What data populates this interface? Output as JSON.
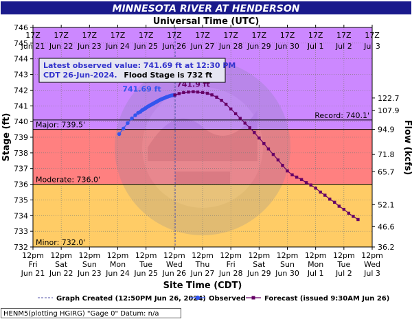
{
  "chart_data": {
    "type": "line",
    "title": "MINNESOTA RIVER AT HENDERSON",
    "top_axis_title": "Universal Time (UTC)",
    "xlabel": "Site Time (CDT)",
    "ylabel": "Stage (ft)",
    "y2label": "Flow (kcfs)",
    "x_range": [
      0,
      12
    ],
    "ylim": [
      732,
      746
    ],
    "y_ticks": [
      732,
      733,
      734,
      735,
      736,
      737,
      738,
      739,
      740,
      741,
      742,
      743,
      744,
      745,
      746
    ],
    "top_ticks": [
      {
        "x": 0,
        "l1": "17Z",
        "l2": "Jun 21"
      },
      {
        "x": 1,
        "l1": "17Z",
        "l2": "Jun 22"
      },
      {
        "x": 2,
        "l1": "17Z",
        "l2": "Jun 23"
      },
      {
        "x": 3,
        "l1": "17Z",
        "l2": "Jun 24"
      },
      {
        "x": 4,
        "l1": "17Z",
        "l2": "Jun 25"
      },
      {
        "x": 5,
        "l1": "17Z",
        "l2": "Jun 26"
      },
      {
        "x": 6,
        "l1": "17Z",
        "l2": "Jun 27"
      },
      {
        "x": 7,
        "l1": "17Z",
        "l2": "Jun 28"
      },
      {
        "x": 8,
        "l1": "17Z",
        "l2": "Jun 29"
      },
      {
        "x": 9,
        "l1": "17Z",
        "l2": "Jun 30"
      },
      {
        "x": 10,
        "l1": "17Z",
        "l2": "Jul 1"
      },
      {
        "x": 11,
        "l1": "17Z",
        "l2": "Jul 2"
      },
      {
        "x": 12,
        "l1": "17Z",
        "l2": "Jul 3"
      }
    ],
    "bottom_ticks": [
      {
        "x": 0,
        "l1": "12pm",
        "l2": "Fri",
        "l3": "Jun 21"
      },
      {
        "x": 1,
        "l1": "12pm",
        "l2": "Sat",
        "l3": "Jun 22"
      },
      {
        "x": 2,
        "l1": "12pm",
        "l2": "Sun",
        "l3": "Jun 23"
      },
      {
        "x": 3,
        "l1": "12pm",
        "l2": "Mon",
        "l3": "Jun 24"
      },
      {
        "x": 4,
        "l1": "12pm",
        "l2": "Tue",
        "l3": "Jun 25"
      },
      {
        "x": 5,
        "l1": "12pm",
        "l2": "Wed",
        "l3": "Jun 26"
      },
      {
        "x": 6,
        "l1": "12pm",
        "l2": "Thu",
        "l3": "Jun 27"
      },
      {
        "x": 7,
        "l1": "12pm",
        "l2": "Fri",
        "l3": "Jun 28"
      },
      {
        "x": 8,
        "l1": "12pm",
        "l2": "Sat",
        "l3": "Jun 29"
      },
      {
        "x": 9,
        "l1": "12pm",
        "l2": "Sun",
        "l3": "Jun 30"
      },
      {
        "x": 10,
        "l1": "12pm",
        "l2": "Mon",
        "l3": "Jul 1"
      },
      {
        "x": 11,
        "l1": "12pm",
        "l2": "Tue",
        "l3": "Jul 2"
      },
      {
        "x": 12,
        "l1": "12pm",
        "l2": "Wed",
        "l3": "Jul 3"
      }
    ],
    "flow_ticks": [
      {
        "stage": 732.0,
        "label": "36.2"
      },
      {
        "stage": 733.3,
        "label": "46.6"
      },
      {
        "stage": 734.7,
        "label": "52.1"
      },
      {
        "stage": 736.8,
        "label": "65.7"
      },
      {
        "stage": 737.9,
        "label": "71.8"
      },
      {
        "stage": 739.5,
        "label": "94.9"
      },
      {
        "stage": 740.7,
        "label": "107.9"
      },
      {
        "stage": 741.5,
        "label": "122.7"
      }
    ],
    "bands": [
      {
        "name": "Minor",
        "from": 732.0,
        "to": 736.0,
        "color": "#ffcc66",
        "label": "Minor: 732.0'"
      },
      {
        "name": "Moderate",
        "from": 736.0,
        "to": 739.5,
        "color": "#ff8080",
        "label": "Moderate: 736.0'"
      },
      {
        "name": "Major",
        "from": 739.5,
        "to": 746.0,
        "color": "#cc88ff",
        "label": "Major: 739.5'"
      }
    ],
    "record": {
      "stage": 740.1,
      "label": "Record: 740.1'"
    },
    "graph_created_x": 5.03,
    "series": [
      {
        "name": "Observed",
        "color": "#3355ee",
        "points": [
          [
            3.05,
            739.2
          ],
          [
            3.2,
            739.55
          ],
          [
            3.35,
            739.9
          ],
          [
            3.5,
            740.2
          ],
          [
            3.62,
            740.4
          ],
          [
            3.72,
            740.55
          ],
          [
            3.8,
            740.62
          ],
          [
            3.86,
            740.72
          ],
          [
            3.9,
            740.76
          ],
          [
            3.94,
            740.8
          ],
          [
            3.98,
            740.85
          ],
          [
            4.02,
            740.9
          ],
          [
            4.06,
            740.95
          ],
          [
            4.1,
            740.99
          ],
          [
            4.14,
            741.03
          ],
          [
            4.18,
            741.07
          ],
          [
            4.22,
            741.11
          ],
          [
            4.26,
            741.15
          ],
          [
            4.3,
            741.19
          ],
          [
            4.34,
            741.23
          ],
          [
            4.38,
            741.27
          ],
          [
            4.42,
            741.31
          ],
          [
            4.46,
            741.35
          ],
          [
            4.5,
            741.39
          ],
          [
            4.54,
            741.42
          ],
          [
            4.58,
            741.45
          ],
          [
            4.62,
            741.48
          ],
          [
            4.66,
            741.51
          ],
          [
            4.7,
            741.54
          ],
          [
            4.74,
            741.57
          ],
          [
            4.78,
            741.59
          ],
          [
            4.82,
            741.62
          ],
          [
            4.86,
            741.64
          ],
          [
            4.9,
            741.66
          ],
          [
            4.94,
            741.67
          ],
          [
            4.98,
            741.68
          ],
          [
            5.02,
            741.69
          ]
        ]
      },
      {
        "name": "Forecast",
        "color": "#660066",
        "points": [
          [
            5.02,
            741.69
          ],
          [
            5.17,
            741.78
          ],
          [
            5.33,
            741.85
          ],
          [
            5.5,
            741.88
          ],
          [
            5.67,
            741.9
          ],
          [
            5.83,
            741.88
          ],
          [
            6.0,
            741.85
          ],
          [
            6.17,
            741.8
          ],
          [
            6.33,
            741.7
          ],
          [
            6.5,
            741.55
          ],
          [
            6.67,
            741.35
          ],
          [
            6.83,
            741.1
          ],
          [
            7.0,
            740.8
          ],
          [
            7.17,
            740.5
          ],
          [
            7.33,
            740.2
          ],
          [
            7.5,
            739.9
          ],
          [
            7.67,
            739.6
          ],
          [
            7.83,
            739.3
          ],
          [
            8.0,
            738.95
          ],
          [
            8.17,
            738.6
          ],
          [
            8.33,
            738.25
          ],
          [
            8.5,
            737.9
          ],
          [
            8.67,
            737.55
          ],
          [
            8.83,
            737.2
          ],
          [
            9.0,
            736.85
          ],
          [
            9.17,
            736.6
          ],
          [
            9.33,
            736.45
          ],
          [
            9.5,
            736.3
          ],
          [
            9.67,
            736.1
          ],
          [
            9.83,
            735.95
          ],
          [
            10.0,
            735.75
          ],
          [
            10.17,
            735.5
          ],
          [
            10.33,
            735.3
          ],
          [
            10.5,
            735.05
          ],
          [
            10.67,
            734.85
          ],
          [
            10.83,
            734.6
          ],
          [
            11.0,
            734.4
          ],
          [
            11.17,
            734.15
          ],
          [
            11.33,
            733.95
          ],
          [
            11.5,
            733.75
          ]
        ]
      }
    ],
    "annotations": {
      "observed_value": "741.69 ft",
      "crest_value": "741.9 ft"
    }
  },
  "info_box": {
    "line1": "Latest observed value: 741.69 ft at 12:30 PM",
    "line2_blue": "CDT 26-Jun-2024.",
    "line2_black": "Flood Stage is 732 ft"
  },
  "legend": {
    "created": "Graph Created (12:50PM Jun 26, 2024)",
    "observed": "Observed",
    "forecast": "Forecast (issued 9:30AM Jun 26)"
  },
  "footer": "HENM5(plotting HGIRG) \"Gage 0\" Datum: n/a",
  "colors": {
    "title_bg": "#1a1a8c",
    "observed": "#3355ee",
    "forecast": "#660066",
    "info_text": "#3333cc"
  }
}
